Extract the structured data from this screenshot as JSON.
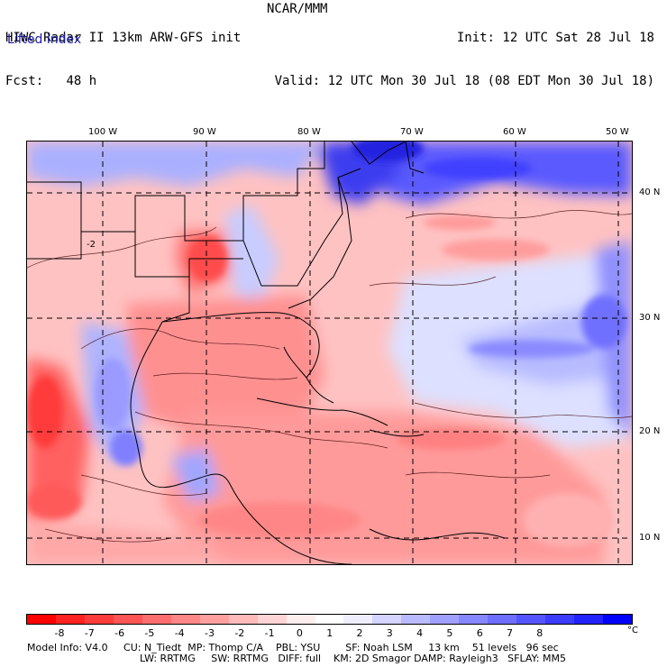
{
  "header": {
    "line1_left": "HIWC Radar II 13km ARW-GFS init",
    "line1_center": "NCAR/MMM",
    "line1_right": "Init: 12 UTC Sat 28 Jul 18",
    "line2_left_label": "Fcst:",
    "line2_left_value": "48 h",
    "line2_right": "Valid: 12 UTC Mon 30 Jul 18 (08 EDT Mon 30 Jul 18)",
    "variable": "Lifted index"
  },
  "map": {
    "longitude_labels": [
      "100 W",
      "90 W",
      "80 W",
      "70 W",
      "60 W",
      "50 W"
    ],
    "latitude_labels": [
      "40 N",
      "30 N",
      "20 N",
      "10 N"
    ],
    "contour_label": "-2"
  },
  "colorbar": {
    "unit": "°C",
    "tick_labels": [
      "-8",
      "-7",
      "-6",
      "-5",
      "-4",
      "-3",
      "-2",
      "-1",
      "0",
      "1",
      "2",
      "3",
      "4",
      "5",
      "6",
      "7",
      "8"
    ],
    "colors": [
      "#ff0000",
      "#ff2222",
      "#ff3c3c",
      "#ff5555",
      "#ff6e6e",
      "#ff8787",
      "#ffa0a0",
      "#ffbaba",
      "#ffd4d4",
      "#ffeeee",
      "#ffffff",
      "#eeeeff",
      "#d4d4ff",
      "#babaff",
      "#a0a0ff",
      "#8787ff",
      "#6e6eff",
      "#5555ff",
      "#3c3cff",
      "#2222ff",
      "#0000ff"
    ]
  },
  "footer": {
    "line1": "Model Info: V4.0     CU: N_Tiedt  MP: Thomp C/A    PBL: YSU        SF: Noah LSM     13 km    51 levels   96 sec",
    "line2": "LW: RRTMG     SW: RRTMG   DIFF: full    KM: 2D Smagor DAMP: Rayleigh3   SFLAY: MM5"
  }
}
